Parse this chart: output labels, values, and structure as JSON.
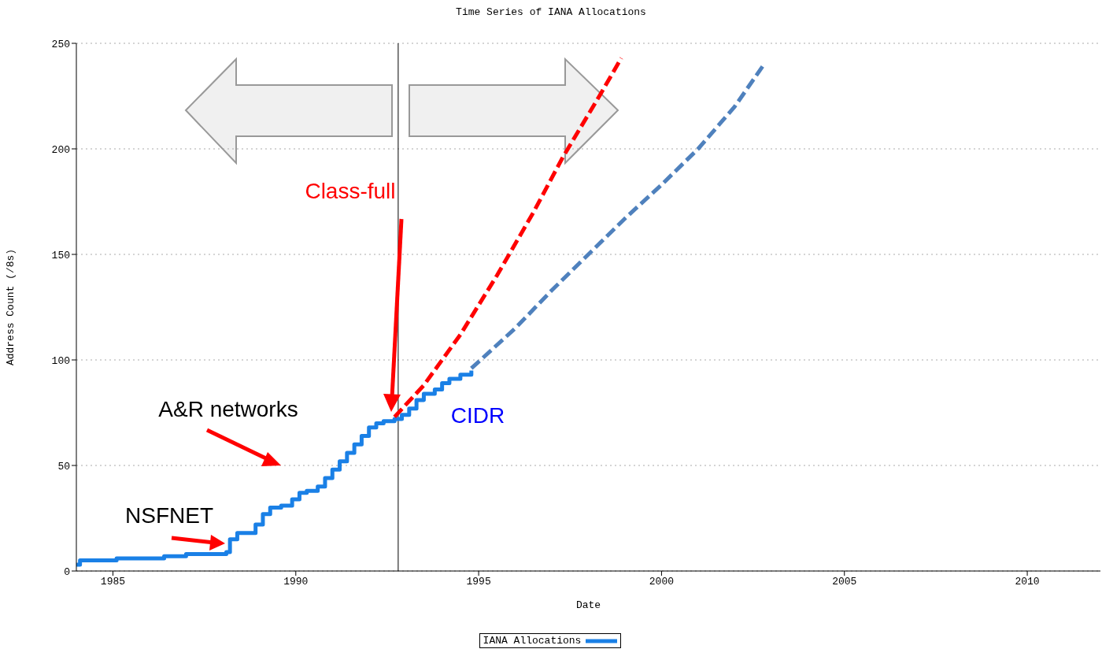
{
  "chart_data": {
    "type": "step",
    "title": "Time Series of IANA Allocations",
    "xlabel": "Date",
    "ylabel": "Address Count (/8s)",
    "xlim": [
      1984,
      2012
    ],
    "xticks": [
      1985,
      1990,
      1995,
      2000,
      2005,
      2010
    ],
    "ylim": [
      0,
      250
    ],
    "yticks": [
      0,
      50,
      100,
      150,
      200,
      250
    ],
    "grid": "y",
    "legend": "bottom",
    "series": [
      {
        "name": "IANA Allocations",
        "color": "#1a80e6",
        "type": "step",
        "x": [
          1984.0,
          1984.1,
          1985.1,
          1986.4,
          1987.0,
          1988.1,
          1988.2,
          1988.4,
          1988.9,
          1989.1,
          1989.3,
          1989.6,
          1989.9,
          1990.1,
          1990.3,
          1990.6,
          1990.8,
          1991.0,
          1991.2,
          1991.4,
          1991.6,
          1991.8,
          1992.0,
          1992.2,
          1992.4,
          1992.7,
          1992.9,
          1993.1,
          1993.3,
          1993.5,
          1993.8,
          1994.0,
          1994.2,
          1994.5,
          1994.8
        ],
        "values": [
          3,
          5,
          6,
          7,
          8,
          9,
          15,
          18,
          22,
          27,
          30,
          31,
          34,
          37,
          38,
          40,
          44,
          48,
          52,
          56,
          60,
          64,
          68,
          70,
          71,
          72,
          74,
          77,
          81,
          84,
          86,
          89,
          91,
          93,
          95
        ]
      },
      {
        "color": "#ff0000",
        "type": "line",
        "line_style": "dashed",
        "x": [
          1992.7,
          1993.5,
          1994.5,
          1995.5,
          1996.5,
          1997.3,
          1998.3,
          1998.9
        ],
        "values": [
          73,
          88,
          112,
          140,
          170,
          196,
          225,
          243
        ]
      },
      {
        "color": "#4f81bd",
        "type": "line",
        "line_style": "dashed",
        "x": [
          1994.8,
          1996,
          1997,
          1998,
          1999,
          2000,
          2001,
          2002,
          2002.8
        ],
        "values": [
          96,
          115,
          133,
          150,
          167,
          183,
          200,
          220,
          240
        ]
      }
    ],
    "ref_lines": [
      {
        "axis": "x",
        "value": 1992.8,
        "color": "#000000"
      }
    ],
    "annotations": [
      "Class-full",
      "CIDR",
      "A&R networks",
      "NSFNET"
    ]
  }
}
